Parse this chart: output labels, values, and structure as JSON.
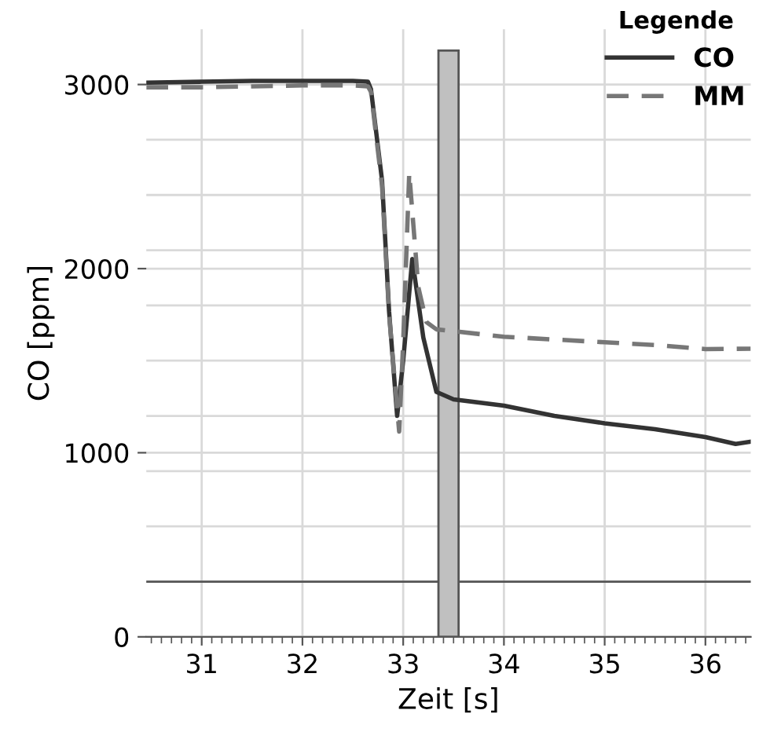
{
  "chart_data": {
    "type": "line",
    "xlabel": "Zeit [s]",
    "ylabel": "CO [ppm]",
    "legend_title": "Legende",
    "legend": "top right",
    "grid": true,
    "xlim": [
      30.45,
      36.45
    ],
    "xticks": [
      31,
      32,
      33,
      34,
      35,
      36
    ],
    "ylim": [
      0,
      3300
    ],
    "yticks": [
      0,
      {
        "value": 300,
        "label": null
      },
      {
        "value": 600,
        "label": null
      },
      {
        "value": 900,
        "label": null
      },
      1000,
      {
        "value": 1200,
        "label": null
      },
      {
        "value": 1500,
        "label": null
      },
      {
        "value": 1800,
        "label": null
      },
      2000,
      {
        "value": 2100,
        "label": null
      },
      {
        "value": 2400,
        "label": null
      },
      {
        "value": 2700,
        "label": null
      },
      3000
    ],
    "ref_lines": [
      {
        "axis": "y",
        "value": 300,
        "color": "#555555"
      }
    ],
    "bands": [
      {
        "axis": "x",
        "from": 33.35,
        "to": 33.55,
        "color": "#c0c0c0"
      }
    ],
    "series": [
      {
        "name": "CO",
        "color": "#333333",
        "line_style": "solid",
        "x": [
          30.45,
          31.0,
          31.5,
          32.0,
          32.5,
          32.65,
          32.68,
          32.79,
          32.86,
          32.94,
          33.0,
          33.09,
          33.2,
          33.33,
          33.5,
          34.0,
          34.5,
          35.0,
          35.5,
          36.0,
          36.3,
          36.45
        ],
        "values": [
          3010,
          3015,
          3020,
          3020,
          3020,
          3015,
          2975,
          2480,
          1767,
          1200,
          1500,
          2052,
          1625,
          1330,
          1290,
          1256,
          1200,
          1160,
          1128,
          1085,
          1048,
          1060
        ]
      },
      {
        "name": "MM",
        "color": "#777777",
        "line_style": "dashed",
        "x": [
          30.45,
          31.0,
          31.5,
          32.0,
          32.5,
          32.65,
          32.68,
          32.79,
          32.86,
          32.96,
          33.0,
          33.06,
          33.15,
          33.23,
          33.33,
          33.5,
          34.0,
          34.5,
          35.0,
          35.5,
          36.0,
          36.45
        ],
        "values": [
          2985,
          2985,
          2990,
          2995,
          2995,
          2990,
          2960,
          2450,
          1750,
          1115,
          1600,
          2520,
          1900,
          1710,
          1670,
          1660,
          1630,
          1615,
          1600,
          1585,
          1563,
          1565
        ]
      }
    ]
  }
}
